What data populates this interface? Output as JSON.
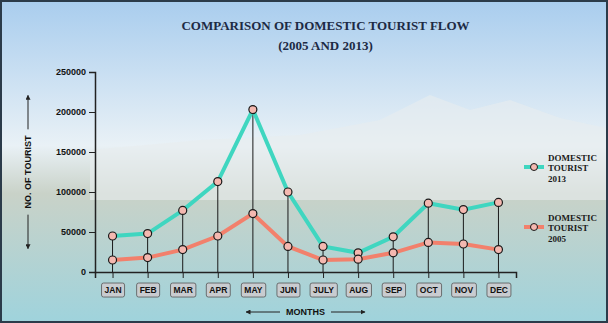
{
  "chart_data": {
    "type": "line",
    "title": "COMPARISON OF DOMESTIC TOURIST FLOW",
    "subtitle": "(2005 AND 2013)",
    "x_label": "MONTHS",
    "y_label": "NO. OF TOURIST",
    "categories": [
      "JAN",
      "FEB",
      "MAR",
      "APR",
      "MAY",
      "JUN",
      "JULY",
      "AUG",
      "SEP",
      "OCT",
      "NOV",
      "DEC"
    ],
    "series": [
      {
        "name": "DOMESTIC TOURIST 2013",
        "color": "#3fd6c0",
        "marker": "circle",
        "values": [
          45000,
          48000,
          77000,
          113000,
          203000,
          100000,
          32000,
          24000,
          44000,
          86000,
          78000,
          87000
        ]
      },
      {
        "name": "DOMESTIC TOURIST 2005",
        "color": "#f2806c",
        "marker": "circle",
        "values": [
          15000,
          18000,
          28000,
          45000,
          73000,
          32000,
          15000,
          16000,
          24000,
          37000,
          35000,
          28000
        ]
      }
    ],
    "ylim": [
      0,
      250000
    ],
    "yticks": [
      0,
      50000,
      100000,
      150000,
      200000,
      250000
    ],
    "grid": false,
    "legend": "right",
    "data_labels": false
  }
}
